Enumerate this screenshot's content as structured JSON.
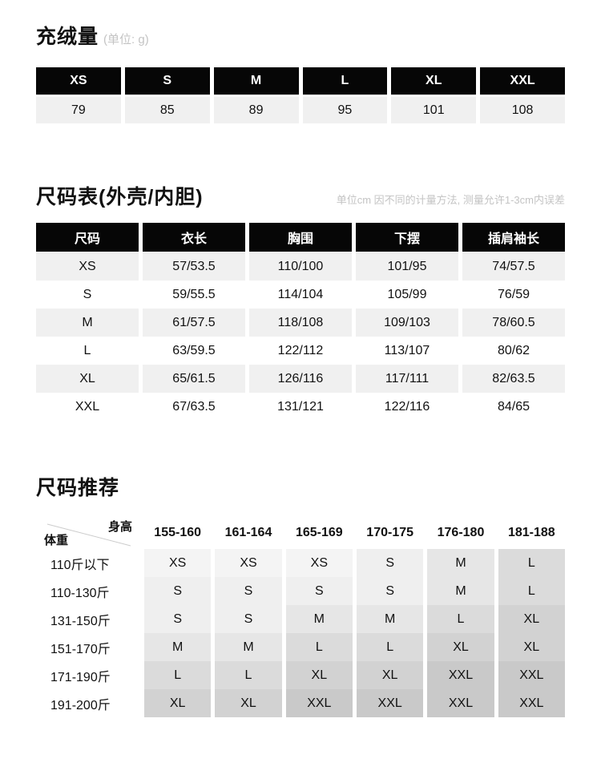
{
  "colors": {
    "header_bg": "#060606",
    "header_text": "#ffffff",
    "row_alt_bg": "#f0f0f0",
    "muted_text": "#c4c4c4",
    "diagonal_line": "#cccccc"
  },
  "section_fill": {
    "title": "充绒量",
    "unit_note": "(单位: g)",
    "sizes": [
      "XS",
      "S",
      "M",
      "L",
      "XL",
      "XXL"
    ],
    "values": [
      "79",
      "85",
      "89",
      "95",
      "101",
      "108"
    ]
  },
  "section_size_chart": {
    "title": "尺码表(外壳/内胆)",
    "note": "单位cm 因不同的计量方法, 测量允许1-3cm内误差",
    "columns": [
      "尺码",
      "衣长",
      "胸围",
      "下摆",
      "插肩袖长"
    ],
    "rows": [
      [
        "XS",
        "57/53.5",
        "110/100",
        "101/95",
        "74/57.5"
      ],
      [
        "S",
        "59/55.5",
        "114/104",
        "105/99",
        "76/59"
      ],
      [
        "M",
        "61/57.5",
        "118/108",
        "109/103",
        "78/60.5"
      ],
      [
        "L",
        "63/59.5",
        "122/112",
        "113/107",
        "80/62"
      ],
      [
        "XL",
        "65/61.5",
        "126/116",
        "117/111",
        "82/63.5"
      ],
      [
        "XXL",
        "67/63.5",
        "131/121",
        "122/116",
        "84/65"
      ]
    ]
  },
  "section_recommend": {
    "title": "尺码推荐",
    "corner_top_right": "身高",
    "corner_bottom_left": "体重",
    "height_columns": [
      "155-160",
      "161-164",
      "165-169",
      "170-175",
      "176-180",
      "181-188"
    ],
    "weight_rows": [
      "110斤以下",
      "110-130斤",
      "131-150斤",
      "151-170斤",
      "171-190斤",
      "191-200斤"
    ],
    "matrix": [
      [
        "XS",
        "XS",
        "XS",
        "S",
        "M",
        "L"
      ],
      [
        "S",
        "S",
        "S",
        "S",
        "M",
        "L"
      ],
      [
        "S",
        "S",
        "M",
        "M",
        "L",
        "XL"
      ],
      [
        "M",
        "M",
        "L",
        "L",
        "XL",
        "XL"
      ],
      [
        "L",
        "L",
        "XL",
        "XL",
        "XXL",
        "XXL"
      ],
      [
        "XL",
        "XL",
        "XXL",
        "XXL",
        "XXL",
        "XXL"
      ]
    ],
    "size_shades": {
      "XS": "#f4f4f4",
      "S": "#efefef",
      "M": "#e6e6e6",
      "L": "#dbdbdb",
      "XL": "#d2d2d2",
      "XXL": "#c9c9c9"
    }
  }
}
